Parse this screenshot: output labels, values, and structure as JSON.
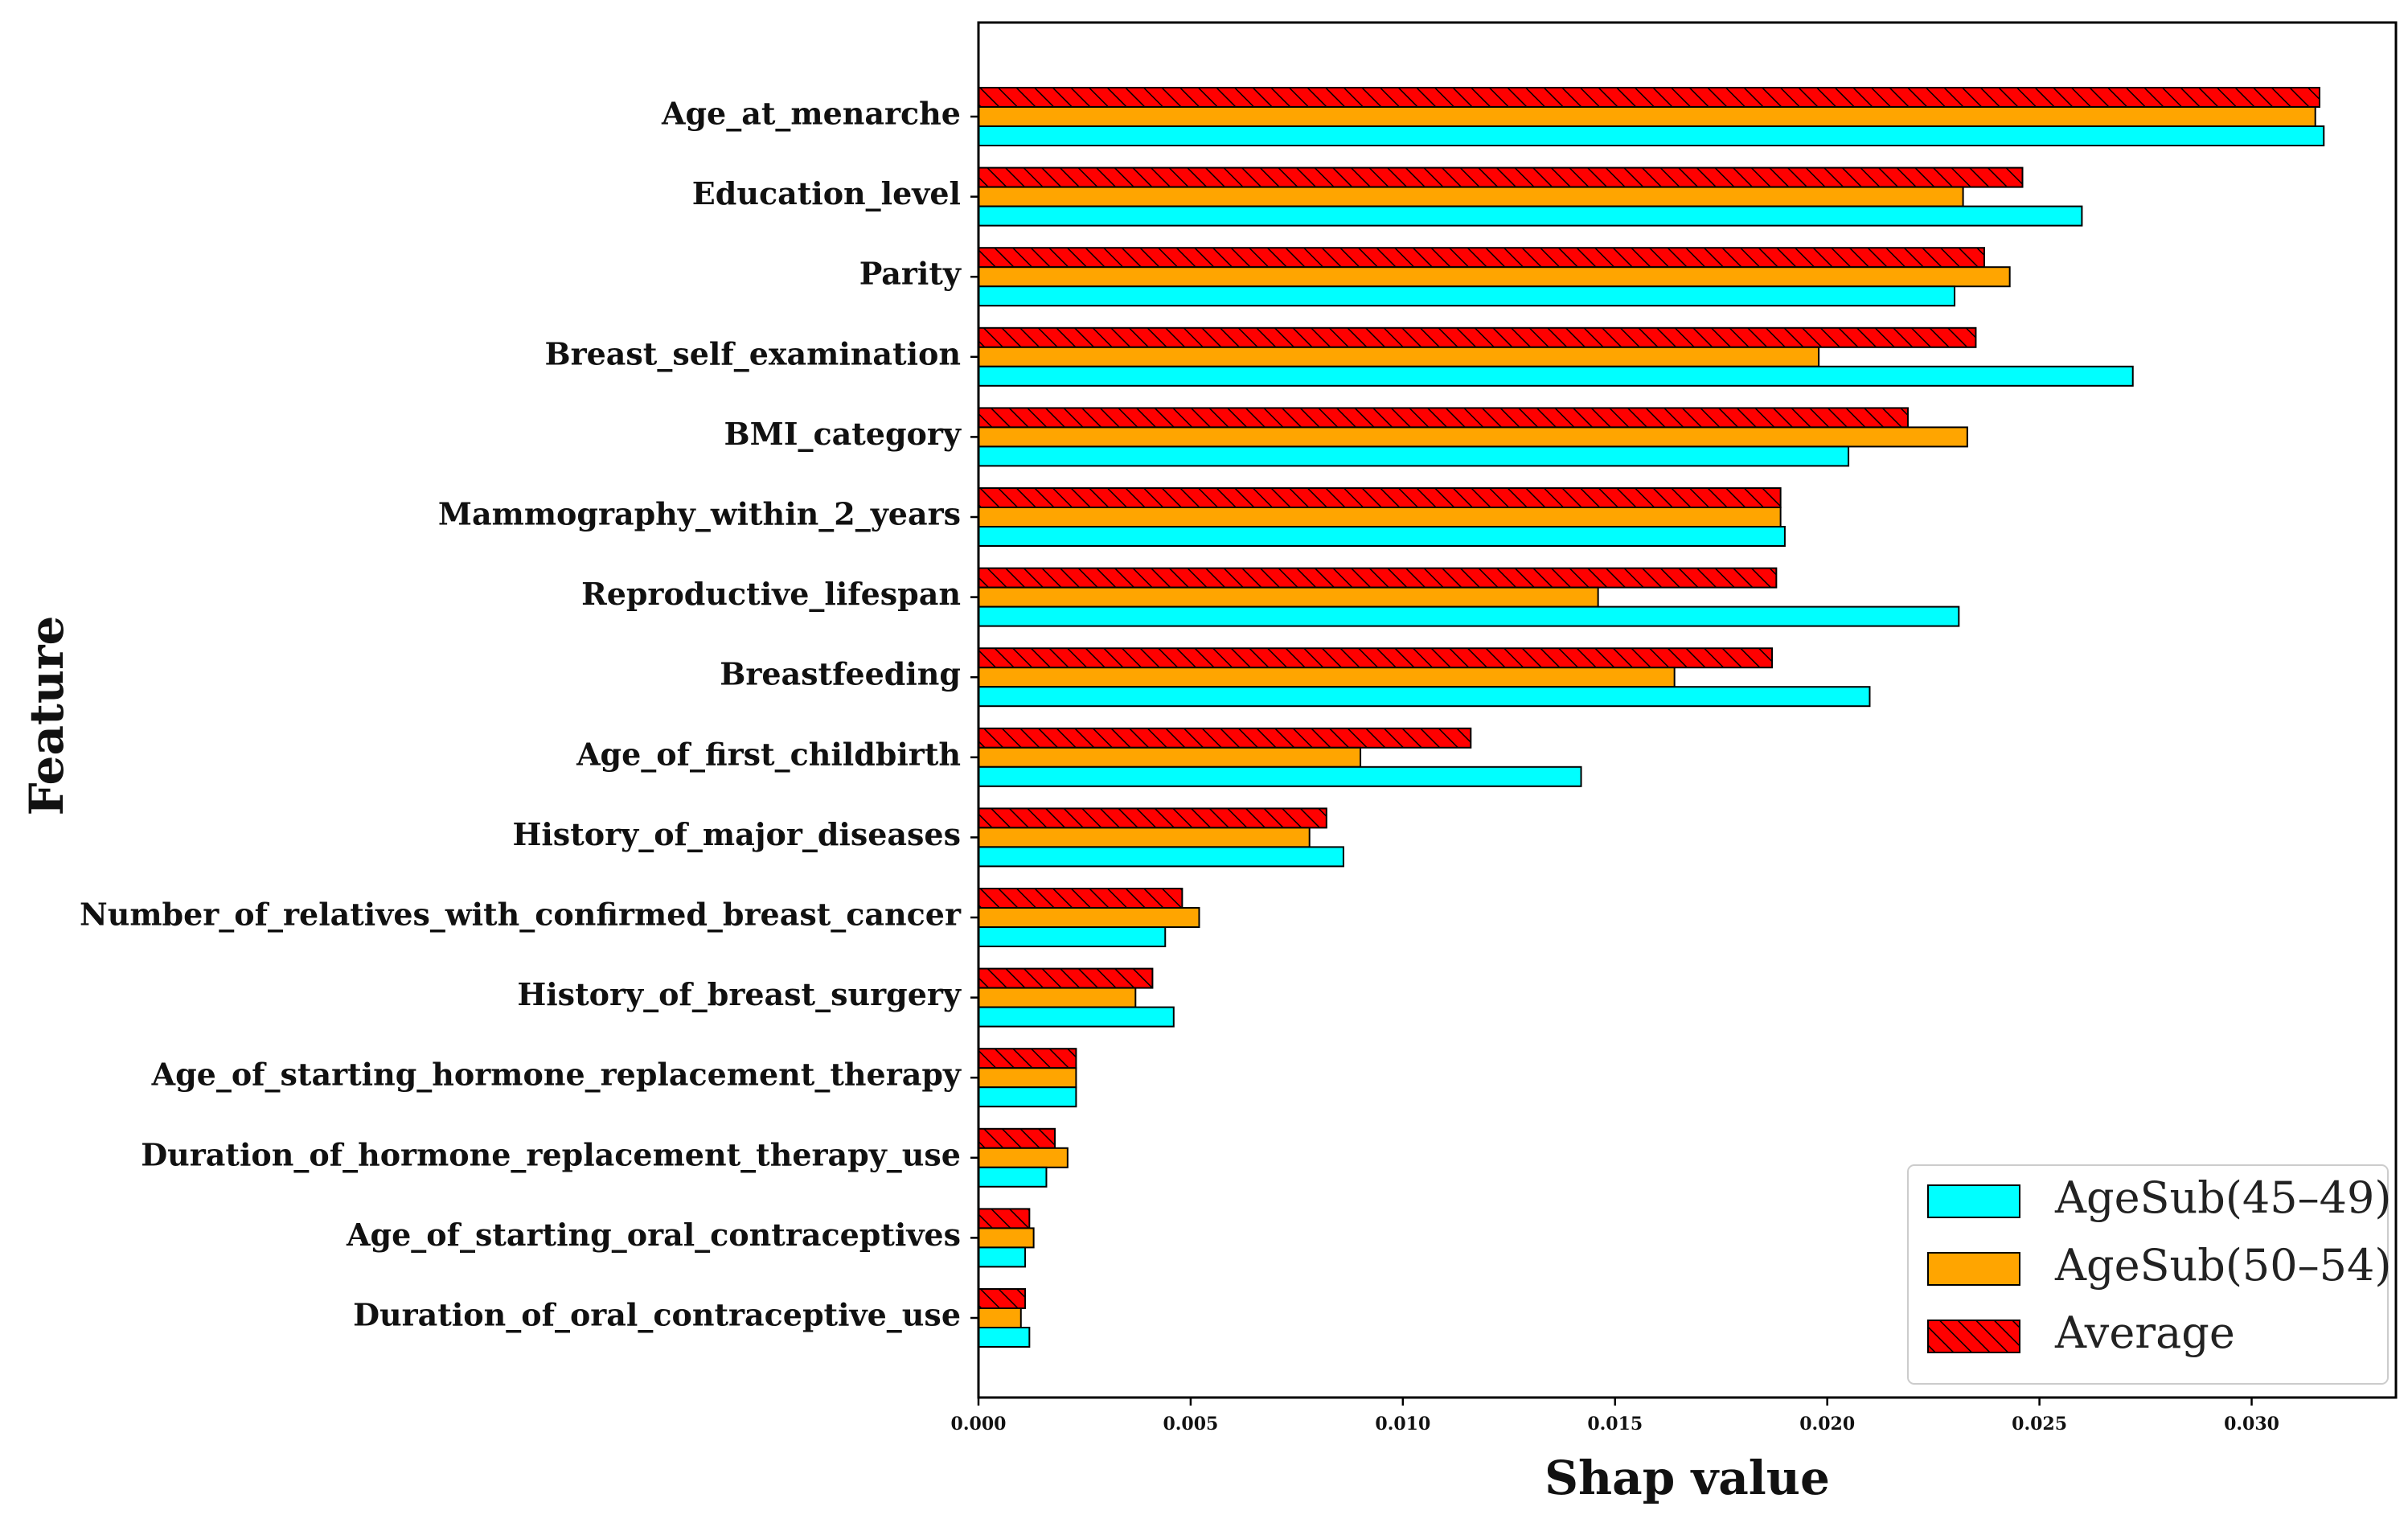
{
  "chart_data": {
    "type": "bar",
    "orientation": "horizontal",
    "title": "",
    "xlabel": "Shap value",
    "ylabel": "Feature",
    "xlim": [
      0.0,
      0.0334
    ],
    "xticks": [
      0.0,
      0.005,
      0.01,
      0.015,
      0.02,
      0.025,
      0.03
    ],
    "xtick_labels": [
      "0.000",
      "0.005",
      "0.010",
      "0.015",
      "0.020",
      "0.025",
      "0.030"
    ],
    "grid": false,
    "legend_position": "lower-right",
    "categories": [
      "Age_at_menarche",
      "Education_level",
      "Parity",
      "Breast_self_examination",
      "BMI_category",
      "Mammography_within_2_years",
      "Reproductive_lifespan",
      "Breastfeeding",
      "Age_of_first_childbirth",
      "History_of_major_diseases",
      "Number_of_relatives_with_confirmed_breast_cancer",
      "History_of_breast_surgery",
      "Age_of_starting_hormone_replacement_therapy",
      "Duration_of_hormone_replacement_therapy_use",
      "Age_of_starting_oral_contraceptives",
      "Duration_of_oral_contraceptive_use"
    ],
    "series": [
      {
        "name": "AgeSub(45–49)",
        "color": "#00ffff",
        "hatch": false,
        "values": [
          0.0317,
          0.026,
          0.023,
          0.0272,
          0.0205,
          0.019,
          0.0231,
          0.021,
          0.0142,
          0.0086,
          0.0044,
          0.0046,
          0.0023,
          0.0016,
          0.0011,
          0.0012
        ]
      },
      {
        "name": "AgeSub(50–54)",
        "color": "#ffa500",
        "hatch": false,
        "values": [
          0.0315,
          0.0232,
          0.0243,
          0.0198,
          0.0233,
          0.0189,
          0.0146,
          0.0164,
          0.009,
          0.0078,
          0.0052,
          0.0037,
          0.0023,
          0.0021,
          0.0013,
          0.001
        ]
      },
      {
        "name": "Average",
        "color": "#ff0000",
        "hatch": true,
        "values": [
          0.0316,
          0.0246,
          0.0237,
          0.0235,
          0.0219,
          0.0189,
          0.0188,
          0.0187,
          0.0116,
          0.0082,
          0.0048,
          0.0041,
          0.0023,
          0.0018,
          0.0012,
          0.0011
        ]
      }
    ]
  }
}
